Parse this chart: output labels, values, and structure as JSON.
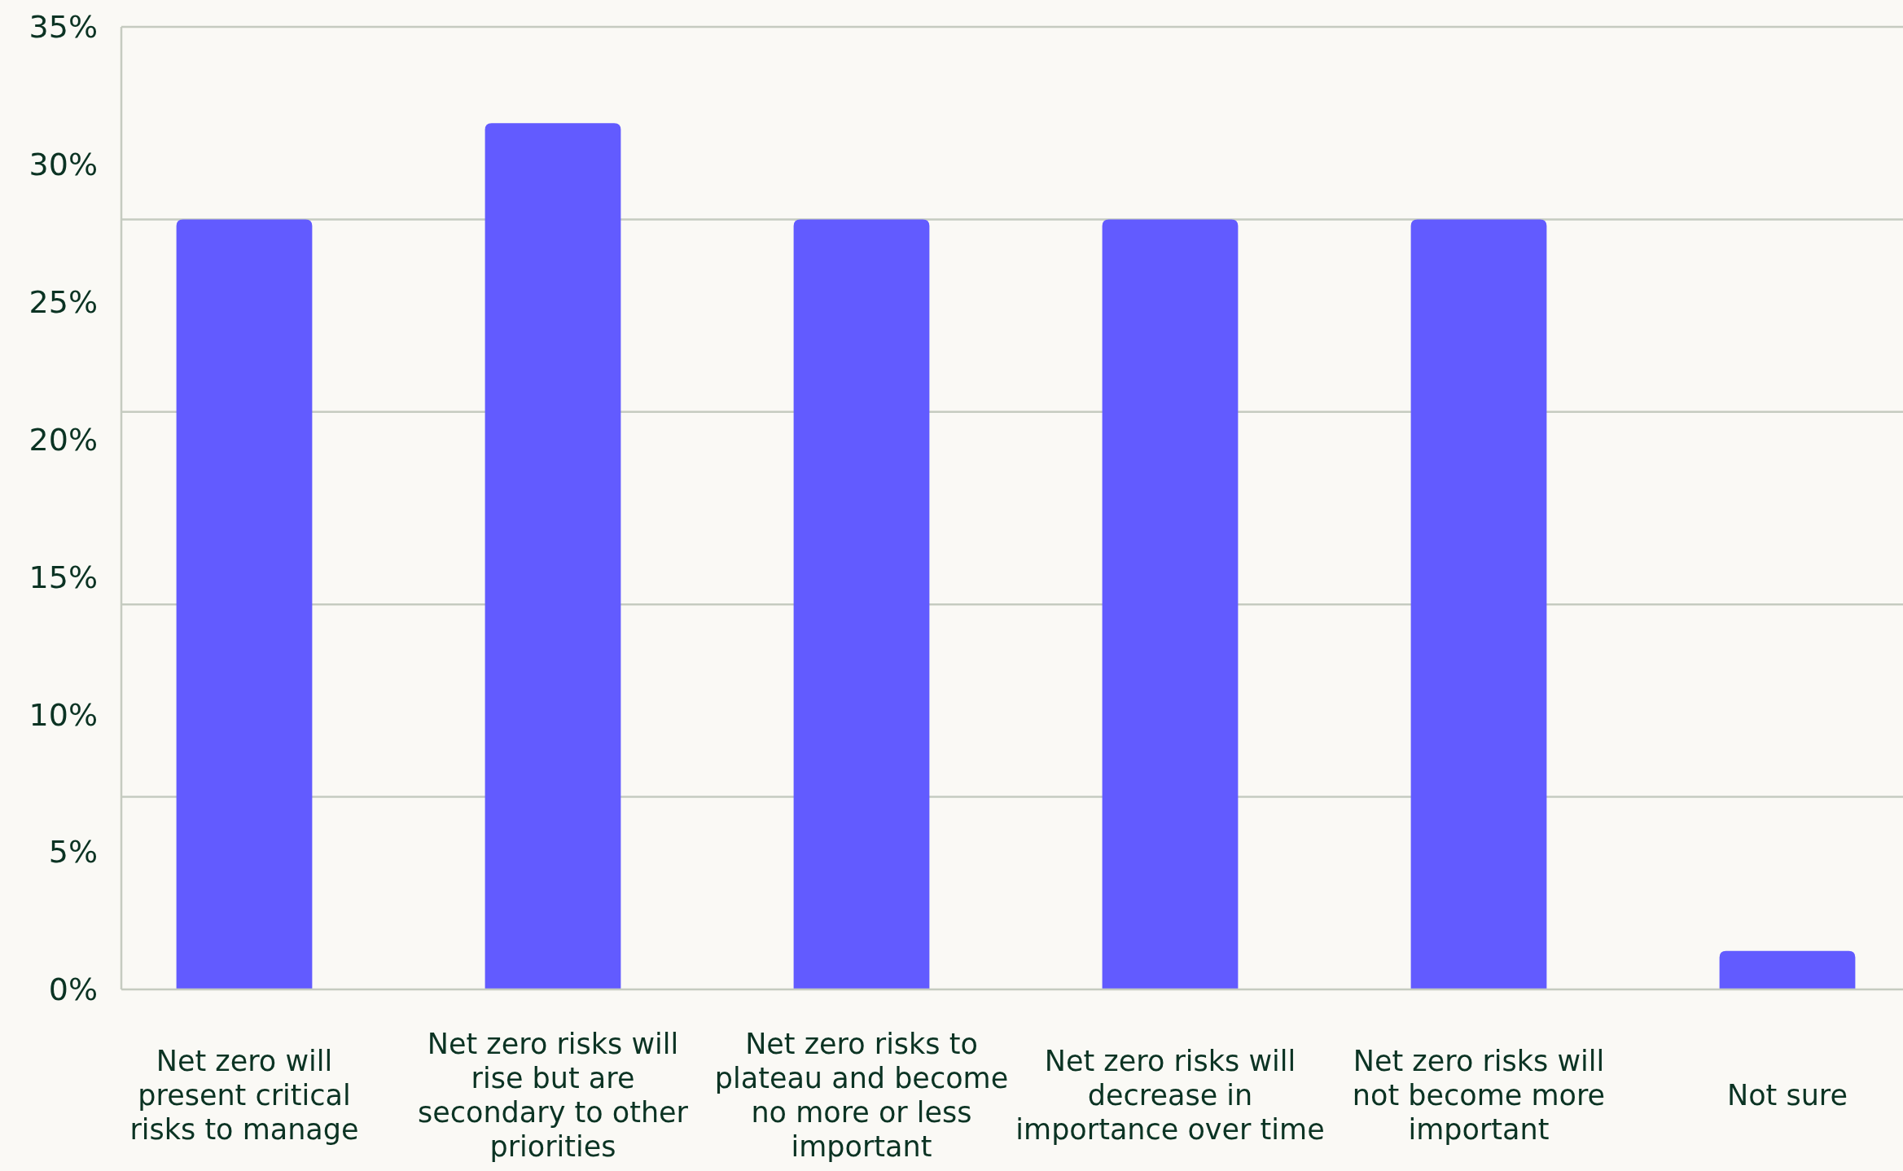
{
  "chart_data": {
    "type": "bar",
    "categories": [
      "Net zero will present critical risks to manage",
      "Net zero risks will rise but are secondary to other priorities",
      "Net zero risks to plateau and become no more or less important",
      "Net zero risks will decrease in importance over time",
      "Net zero risks will not become more important",
      "Not sure"
    ],
    "values": [
      28,
      31.5,
      28,
      28,
      28,
      1.4
    ],
    "color": "#625bff",
    "ylim": [
      0,
      35
    ],
    "yticks": [
      {
        "value": 0,
        "label": "0%"
      },
      {
        "value": 5,
        "label": "5%"
      },
      {
        "value": 10,
        "label": "10%"
      },
      {
        "value": 15,
        "label": "15%"
      },
      {
        "value": 20,
        "label": "20%"
      },
      {
        "value": 25,
        "label": "25%"
      },
      {
        "value": 30,
        "label": "30%"
      },
      {
        "value": 35,
        "label": "35%"
      }
    ],
    "ref_lines": [
      {
        "axis": "y",
        "value": 7,
        "color": "#c5cbc0"
      },
      {
        "axis": "y",
        "value": 14,
        "color": "#c5cbc0"
      },
      {
        "axis": "y",
        "value": 21,
        "color": "#c5cbc0"
      },
      {
        "axis": "y",
        "value": 28,
        "color": "#c5cbc0"
      },
      {
        "axis": "y",
        "value": 35,
        "color": "#c5cbc0"
      }
    ]
  }
}
